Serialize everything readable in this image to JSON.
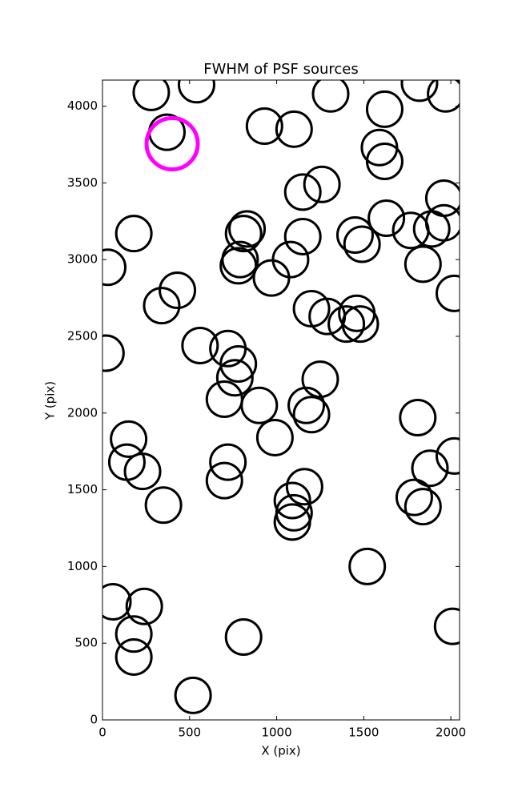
{
  "chart_data": {
    "type": "scatter",
    "title": "FWHM of PSF sources",
    "xlabel": "X (pix)",
    "ylabel": "Y (pix)",
    "xlim": [
      0,
      2050
    ],
    "ylim": [
      0,
      4170
    ],
    "xticks": [
      0,
      500,
      1000,
      1500,
      2000
    ],
    "yticks": [
      0,
      500,
      1000,
      1500,
      2000,
      2500,
      3000,
      3500,
      4000
    ],
    "series": [
      {
        "color": "#000000",
        "x": [
          280,
          540,
          370,
          930,
          1100,
          1310,
          1820,
          1970,
          1620,
          1590,
          1620,
          1150,
          1260,
          1630,
          1770,
          1890,
          1960,
          1960,
          180,
          30,
          830,
          810,
          790,
          780,
          1080,
          970,
          1150,
          1450,
          1490,
          1840,
          430,
          340,
          2020,
          1200,
          1290,
          1460,
          1400,
          1480,
          560,
          20,
          720,
          780,
          760,
          700,
          900,
          1250,
          1170,
          1200,
          1810,
          150,
          140,
          230,
          990,
          720,
          2020,
          700,
          1880,
          350,
          1160,
          1090,
          1100,
          1090,
          1790,
          1840,
          1520,
          60,
          240,
          180,
          180,
          810,
          2010,
          520
        ],
        "y": [
          4090,
          4140,
          3830,
          3870,
          3850,
          4080,
          4150,
          4080,
          3980,
          3730,
          3640,
          3440,
          3490,
          3270,
          3190,
          3200,
          3400,
          3240,
          3170,
          2950,
          3200,
          3170,
          3000,
          2960,
          3000,
          2880,
          3150,
          3160,
          3100,
          2970,
          2800,
          2700,
          2780,
          2680,
          2630,
          2650,
          2580,
          2580,
          2440,
          2390,
          2420,
          2320,
          2230,
          2090,
          2050,
          2220,
          2050,
          1990,
          1970,
          1830,
          1680,
          1620,
          1840,
          1680,
          1720,
          1560,
          1640,
          1400,
          1520,
          1430,
          1350,
          1290,
          1450,
          1390,
          1000,
          770,
          740,
          560,
          410,
          540,
          610,
          160
        ]
      },
      {
        "color": "#ff00ff",
        "x": [
          400
        ],
        "y": [
          3755
        ]
      }
    ]
  }
}
